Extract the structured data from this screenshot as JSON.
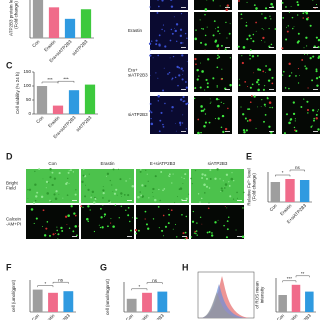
{
  "panel_letters": {
    "c": "C",
    "d": "D",
    "e": "E",
    "f": "F",
    "g": "G",
    "h": "H"
  },
  "micrograph_rows": [
    "Erastin",
    "Era+\nsiATP2B3",
    "siATP2B3"
  ],
  "panel_d": {
    "columns": [
      "Con",
      "Erastin",
      "E+siATP2B3",
      "siATP2B3"
    ],
    "rows": [
      "Bright\nField",
      "Calcein\n-AM+PI"
    ]
  },
  "chart_data": [
    {
      "type": "bar",
      "ylabel": "ATP2B3 protein level\n(Fold change)",
      "categories": [
        "Con",
        "Erastin",
        "Era+siATP2B3",
        "siATP2B3"
      ],
      "values": [
        1.0,
        0.8,
        0.5,
        0.75
      ],
      "colors": [
        "#9e9e9e",
        "#f06b8a",
        "#2f9ae0",
        "#3dc93d"
      ],
      "ylim": [
        0,
        1.2
      ],
      "annotations": [
        "***"
      ]
    },
    {
      "type": "bar",
      "ylabel": "Cell viability (% 24 h)",
      "categories": [
        "Con",
        "Erastin",
        "Era+siATP2B3",
        "siATP2B3"
      ],
      "values": [
        100,
        30,
        85,
        105
      ],
      "colors": [
        "#9e9e9e",
        "#f06b8a",
        "#2f9ae0",
        "#3dc93d"
      ],
      "ylim": [
        0,
        150
      ],
      "yticks": [
        0,
        50,
        100,
        150
      ],
      "annotations": [
        "***",
        "***"
      ]
    },
    {
      "type": "bar",
      "ylabel": "Relative Fe²⁺ level\n(Fold change)",
      "categories": [
        "Con",
        "Erastin",
        "E+siATP2B3"
      ],
      "values": [
        1.0,
        1.15,
        1.1
      ],
      "colors": [
        "#9e9e9e",
        "#f06b8a",
        "#2f9ae0"
      ],
      "ylim": [
        0,
        1.5
      ],
      "annotations": [
        "*",
        "ns"
      ]
    },
    {
      "type": "bar",
      "ylabel": "cell (umol/gprot)",
      "categories": [
        "Con",
        "Erastin",
        "E+siATP2B3"
      ],
      "values": [
        4.2,
        3.6,
        3.9
      ],
      "colors": [
        "#9e9e9e",
        "#f06b8a",
        "#2f9ae0"
      ],
      "ylim": [
        0,
        6
      ],
      "annotations": [
        "*",
        "ns"
      ]
    },
    {
      "type": "bar",
      "ylabel": "cell (nmol/mgprot)",
      "categories": [
        "Con",
        "Erastin",
        "E+siATP2B3"
      ],
      "values": [
        0.22,
        0.32,
        0.34
      ],
      "colors": [
        "#9e9e9e",
        "#f06b8a",
        "#2f9ae0"
      ],
      "ylim": [
        0,
        0.5
      ],
      "annotations": [
        "*",
        "ns"
      ]
    },
    {
      "type": "bar",
      "ylabel": "of ROS mean\nintensity",
      "categories": [
        "Con",
        "Erastin",
        "E+siATP2B3"
      ],
      "values": [
        1.0,
        1.6,
        1.2
      ],
      "colors": [
        "#9e9e9e",
        "#f06b8a",
        "#2f9ae0"
      ],
      "ylim": [
        0,
        2
      ],
      "annotations": [
        "***",
        "**"
      ]
    }
  ]
}
